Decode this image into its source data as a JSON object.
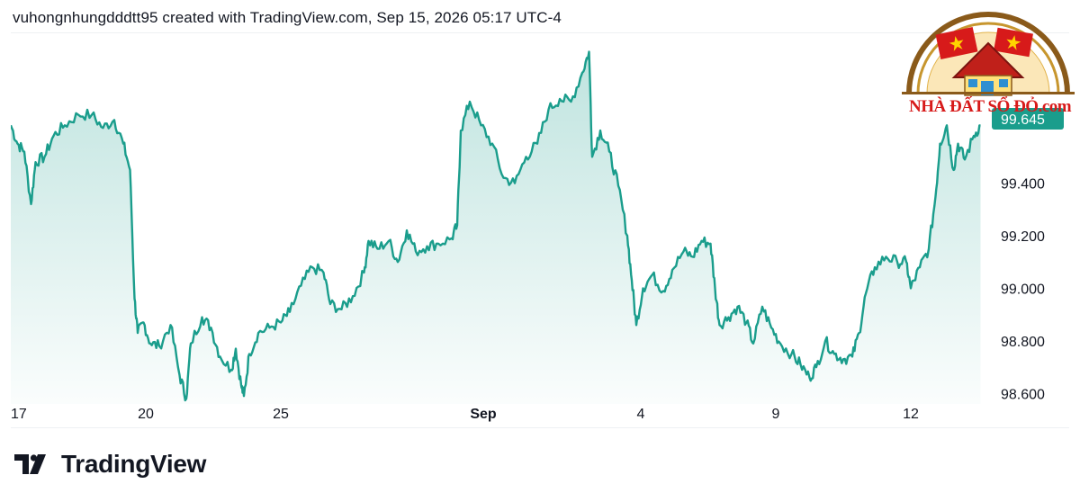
{
  "header": {
    "attribution": "vuhongnhungdddtt95 created with TradingView.com, Sep 15, 2026 05:17 UTC-4"
  },
  "footer": {
    "brand": "TradingView"
  },
  "watermark": {
    "text": "NHÀ ĐẤT SỔ ĐỎ.com"
  },
  "colors": {
    "line": "#1a9d8c",
    "fill_top": "#1a9d8c",
    "last_price_badge": "#1a9d8c",
    "text": "#131722"
  },
  "chart_data": {
    "type": "area",
    "x_ticks": [
      {
        "label": "17",
        "x": 0,
        "bold": false
      },
      {
        "label": "20",
        "x": 3,
        "bold": false
      },
      {
        "label": "25",
        "x": 6,
        "bold": false
      },
      {
        "label": "Sep",
        "x": 10.5,
        "bold": true
      },
      {
        "label": "4",
        "x": 14,
        "bold": false
      },
      {
        "label": "9",
        "x": 17,
        "bold": false
      },
      {
        "label": "12",
        "x": 20,
        "bold": false
      }
    ],
    "y_ticks": [
      "98.600",
      "98.800",
      "99.000",
      "99.200",
      "99.400"
    ],
    "ylim": [
      98.56,
      99.97
    ],
    "xlim": [
      0,
      21.6
    ],
    "last_price_label": "99.645",
    "series": [
      {
        "points": [
          [
            0.0,
            99.62
          ],
          [
            0.15,
            99.55
          ],
          [
            0.3,
            99.52
          ],
          [
            0.45,
            99.32
          ],
          [
            0.55,
            99.48
          ],
          [
            0.75,
            99.5
          ],
          [
            0.95,
            99.58
          ],
          [
            1.2,
            99.62
          ],
          [
            1.5,
            99.66
          ],
          [
            1.8,
            99.66
          ],
          [
            2.05,
            99.61
          ],
          [
            2.3,
            99.64
          ],
          [
            2.5,
            99.55
          ],
          [
            2.65,
            99.45
          ],
          [
            2.75,
            98.96
          ],
          [
            2.82,
            98.83
          ],
          [
            2.95,
            98.87
          ],
          [
            3.1,
            98.79
          ],
          [
            3.3,
            98.78
          ],
          [
            3.55,
            98.86
          ],
          [
            3.75,
            98.67
          ],
          [
            3.9,
            98.58
          ],
          [
            4.0,
            98.79
          ],
          [
            4.25,
            98.89
          ],
          [
            4.45,
            98.85
          ],
          [
            4.65,
            98.74
          ],
          [
            4.9,
            98.69
          ],
          [
            5.0,
            98.77
          ],
          [
            5.12,
            98.63
          ],
          [
            5.18,
            98.59
          ],
          [
            5.3,
            98.75
          ],
          [
            5.5,
            98.83
          ],
          [
            5.75,
            98.85
          ],
          [
            6.0,
            98.87
          ],
          [
            6.2,
            98.91
          ],
          [
            6.45,
            99.01
          ],
          [
            6.7,
            99.08
          ],
          [
            6.95,
            99.06
          ],
          [
            7.1,
            98.94
          ],
          [
            7.35,
            98.92
          ],
          [
            7.6,
            98.97
          ],
          [
            7.85,
            99.06
          ],
          [
            7.95,
            99.18
          ],
          [
            8.15,
            99.15
          ],
          [
            8.4,
            99.18
          ],
          [
            8.6,
            99.1
          ],
          [
            8.8,
            99.22
          ],
          [
            9.0,
            99.14
          ],
          [
            9.25,
            99.16
          ],
          [
            9.5,
            99.17
          ],
          [
            9.8,
            99.19
          ],
          [
            9.92,
            99.24
          ],
          [
            10.0,
            99.6
          ],
          [
            10.2,
            99.71
          ],
          [
            10.45,
            99.62
          ],
          [
            10.7,
            99.55
          ],
          [
            10.95,
            99.42
          ],
          [
            11.2,
            99.4
          ],
          [
            11.45,
            99.5
          ],
          [
            11.7,
            99.55
          ],
          [
            11.95,
            99.68
          ],
          [
            12.2,
            99.72
          ],
          [
            12.45,
            99.71
          ],
          [
            12.7,
            99.82
          ],
          [
            12.85,
            99.9
          ],
          [
            12.92,
            99.5
          ],
          [
            13.1,
            99.6
          ],
          [
            13.3,
            99.52
          ],
          [
            13.5,
            99.39
          ],
          [
            13.7,
            99.2
          ],
          [
            13.8,
            99.03
          ],
          [
            13.9,
            98.86
          ],
          [
            14.05,
            99.0
          ],
          [
            14.25,
            99.05
          ],
          [
            14.5,
            98.99
          ],
          [
            14.7,
            99.07
          ],
          [
            14.95,
            99.14
          ],
          [
            15.15,
            99.12
          ],
          [
            15.35,
            99.18
          ],
          [
            15.55,
            99.17
          ],
          [
            15.65,
            99.0
          ],
          [
            15.75,
            98.86
          ],
          [
            15.95,
            98.89
          ],
          [
            16.15,
            98.93
          ],
          [
            16.35,
            98.87
          ],
          [
            16.5,
            98.79
          ],
          [
            16.7,
            98.93
          ],
          [
            16.9,
            98.85
          ],
          [
            17.1,
            98.79
          ],
          [
            17.35,
            98.75
          ],
          [
            17.55,
            98.71
          ],
          [
            17.75,
            98.66
          ],
          [
            17.9,
            98.7
          ],
          [
            18.1,
            98.8
          ],
          [
            18.3,
            98.75
          ],
          [
            18.5,
            98.73
          ],
          [
            18.7,
            98.74
          ],
          [
            18.85,
            98.83
          ],
          [
            19.0,
            98.98
          ],
          [
            19.2,
            99.08
          ],
          [
            19.45,
            99.12
          ],
          [
            19.7,
            99.1
          ],
          [
            19.9,
            99.1
          ],
          [
            20.0,
            99.0
          ],
          [
            20.2,
            99.08
          ],
          [
            20.4,
            99.15
          ],
          [
            20.55,
            99.35
          ],
          [
            20.65,
            99.55
          ],
          [
            20.8,
            99.62
          ],
          [
            20.95,
            99.45
          ],
          [
            21.05,
            99.55
          ],
          [
            21.2,
            99.49
          ],
          [
            21.4,
            99.58
          ],
          [
            21.55,
            99.62
          ]
        ]
      }
    ]
  }
}
